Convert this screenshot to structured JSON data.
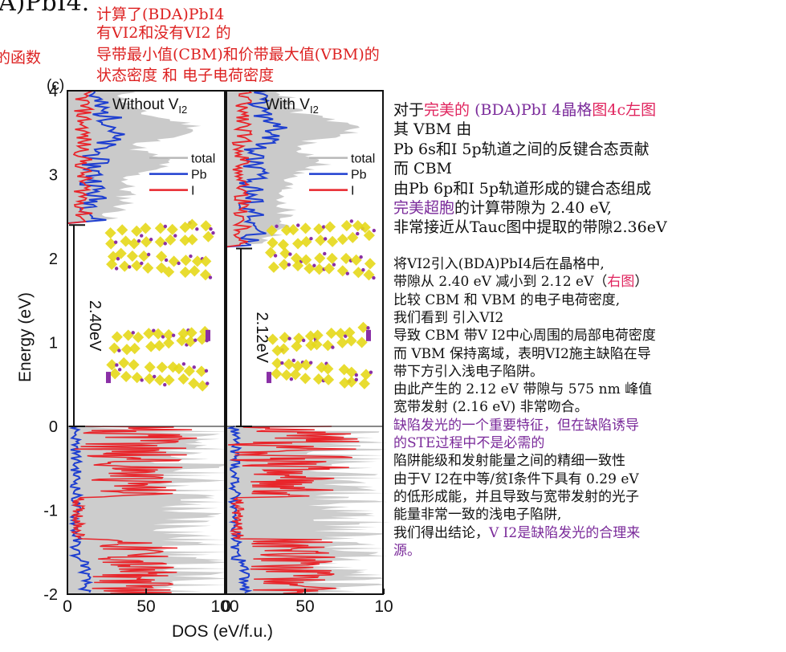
{
  "header": {
    "cut_title": "A)PbI4.",
    "left_cut_note": "的函数",
    "note_lines": [
      "计算了(BDA)PbI4",
      "有VI2和没有VI2 的",
      "导带最小值(CBM)和价带最大值(VBM)的",
      "状态密度 和 电子电荷密度"
    ]
  },
  "figure": {
    "panel_label": "(c)",
    "ylabel": "Energy (eV)",
    "xlabel": "DOS (eV/f.u.)",
    "yticks": [
      "4",
      "3",
      "2",
      "1",
      "0",
      "-1",
      "-2"
    ],
    "xticks": [
      "0",
      "50",
      "100"
    ],
    "x2ticks": [
      "0",
      "50",
      "10"
    ],
    "panels": [
      {
        "title_main": "Without V",
        "title_sub": "I2",
        "gap_label": "2.40eV"
      },
      {
        "title_main": "With V",
        "title_sub": "I2",
        "gap_label": "2.12eV"
      }
    ],
    "legend": [
      "total",
      "Pb",
      "I"
    ],
    "colors": {
      "total": "#b8b8b8",
      "pb": "#1f3fd0",
      "i": "#e8252b",
      "crystal_yellow": "#e6d81a",
      "crystal_purple": "#8a2fa6"
    }
  },
  "chart_data": {
    "type": "area",
    "ylabel": "Energy (eV)",
    "xlabel": "DOS (eV/f.u.)",
    "ylim": [
      -2,
      4
    ],
    "xlim": [
      0,
      100
    ],
    "panels": [
      {
        "name": "Without VI2",
        "band_gap_eV": 2.4,
        "series": [
          "total",
          "Pb",
          "I"
        ]
      },
      {
        "name": "With VI2",
        "band_gap_eV": 2.12,
        "series": [
          "total",
          "Pb",
          "I"
        ]
      }
    ]
  },
  "text": {
    "para1": [
      [
        {
          "t": "对于"
        },
        {
          "t": "完美的",
          "c": "red"
        },
        {
          "t": " (BDA)PbI 4晶格",
          "c": "purple"
        },
        {
          "t": "图4c左图",
          "c": "red"
        }
      ],
      [
        {
          "t": "其 VBM 由"
        }
      ],
      [
        {
          "t": "Pb 6s和I 5p轨道之间的反键合态贡献"
        }
      ],
      [
        {
          "t": "而 CBM"
        }
      ],
      [
        {
          "t": "由Pb 6p和I 5p轨道形成的键合态组成"
        }
      ],
      [
        {
          "t": "完美超胞",
          "c": "purple"
        },
        {
          "t": "的计算带隙为 2.40 eV,"
        }
      ],
      [
        {
          "t": "非常接近从Tauc图中提取的带隙2.36eV"
        }
      ]
    ],
    "para2": [
      [
        {
          "t": "将VI2引入(BDA)PbI4后在晶格中,"
        }
      ],
      [
        {
          "t": "带隙从 2.40 eV 减小到 2.12 eV（"
        },
        {
          "t": "右图",
          "c": "red"
        },
        {
          "t": "）"
        }
      ],
      [
        {
          "t": "比较 CBM 和 VBM 的电子电荷密度,"
        }
      ],
      [
        {
          "t": "我们看到 引入VI2"
        }
      ],
      [
        {
          "t": "导致 CBM 带V I2中心周围的局部电荷密度"
        }
      ],
      [
        {
          "t": "而 VBM 保持离域，表明VI2施主缺陷在导"
        }
      ],
      [
        {
          "t": "带下方引入浅电子陷阱。"
        }
      ],
      [
        {
          "t": "由此产生的 2.12 eV 带隙与 575 nm 峰值"
        }
      ],
      [
        {
          "t": "宽带发射 (2.16 eV) 非常吻合。"
        }
      ],
      [
        {
          "t": "缺陷发光的一个重要特征，但在缺陷诱导",
          "c": "purple"
        }
      ],
      [
        {
          "t": "的STE过程中不是必需的",
          "c": "purple"
        }
      ],
      [
        {
          "t": "陷阱能级和发射能量之间的精细一致性"
        }
      ],
      [
        {
          "t": "由于V I2在中等/贫I条件下具有 0.29 eV"
        }
      ],
      [
        {
          "t": "的低形成能，并且导致与宽带发射的光子"
        }
      ],
      [
        {
          "t": "能量非常一致的浅电子陷阱,"
        }
      ],
      [
        {
          "t": "我们得出结论，"
        },
        {
          "t": "V I2是缺陷发光的合理来",
          "c": "purple"
        }
      ],
      [
        {
          "t": "源。",
          "c": "purple"
        }
      ]
    ]
  }
}
